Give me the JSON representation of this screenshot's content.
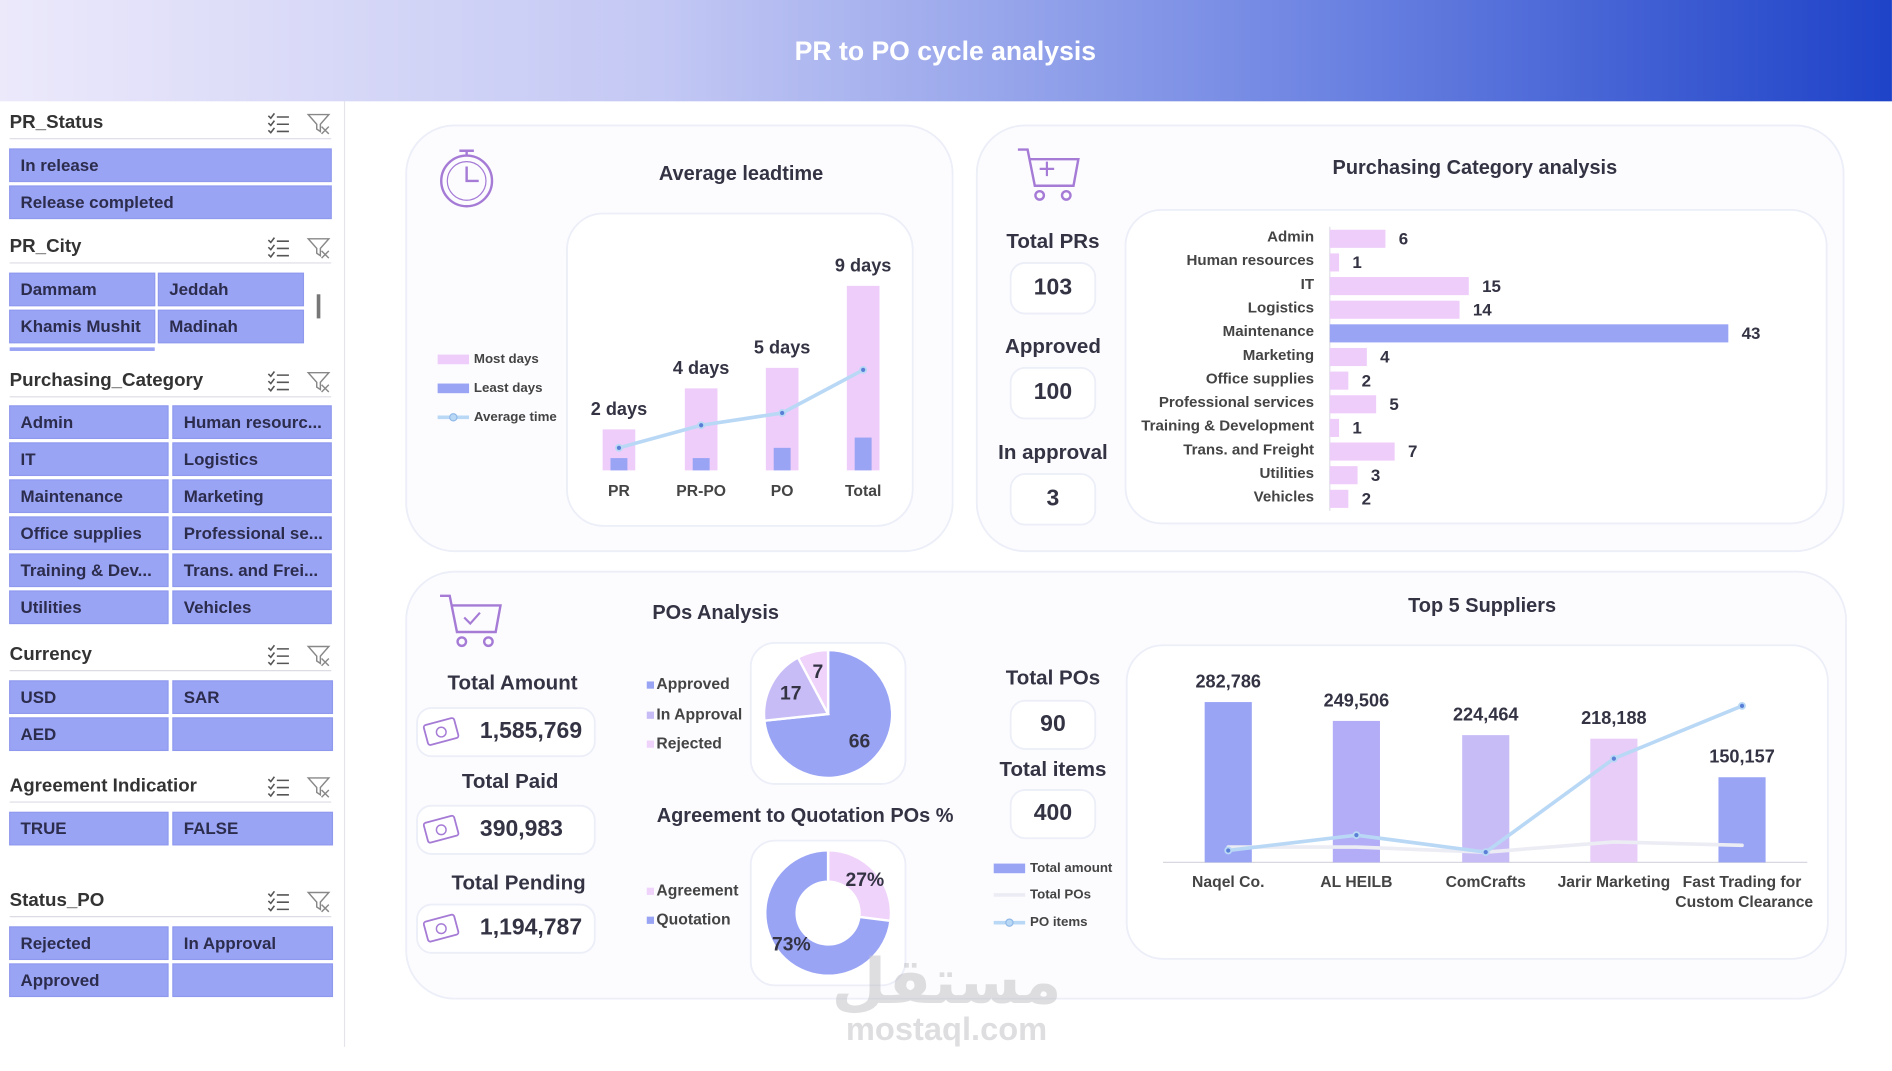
{
  "header": {
    "title": "PR to PO cycle analysis"
  },
  "slicers": [
    {
      "title": "PR_Status",
      "items": [
        "In release",
        "Release completed"
      ]
    },
    {
      "title": "PR_City",
      "items": [
        "Dammam",
        "Jeddah",
        "Khamis Mushit",
        "Madinah"
      ]
    },
    {
      "title": "Purchasing_Category",
      "items": [
        "Admin",
        "Human resourc...",
        "IT",
        "Logistics",
        "Maintenance",
        "Marketing",
        "Office supplies",
        "Professional se...",
        "Training & Dev...",
        "Trans. and Frei...",
        "Utilities",
        "Vehicles"
      ]
    },
    {
      "title": "Currency",
      "items": [
        "USD",
        "SAR",
        "AED"
      ]
    },
    {
      "title": "Agreement Indicatior",
      "items": [
        "TRUE",
        "FALSE"
      ]
    },
    {
      "title": "Status_PO",
      "items": [
        "Rejected",
        "In Approval",
        "Approved"
      ]
    }
  ],
  "kpis": {
    "category": [
      {
        "label": "Total PRs",
        "value": "103"
      },
      {
        "label": "Approved",
        "value": "100"
      },
      {
        "label": "In approval",
        "value": "3"
      }
    ],
    "pos": [
      {
        "label": "Total Amount",
        "value": "1,585,769"
      },
      {
        "label": "Total Paid",
        "value": "390,983"
      },
      {
        "label": "Total Pending",
        "value": "1,194,787"
      }
    ],
    "suppliers": [
      {
        "label": "Total POs",
        "value": "90"
      },
      {
        "label": "Total items",
        "value": "400"
      }
    ]
  },
  "chart_data": [
    {
      "type": "combo",
      "title": "Average leadtime",
      "categories": [
        "PR",
        "PR-PO",
        "PO",
        "Total"
      ],
      "series": [
        {
          "name": "Most days",
          "type": "bar",
          "color": "#efcdfa",
          "values": [
            2,
            4,
            5,
            9
          ],
          "value_labels": [
            "2 days",
            "4 days",
            "5 days",
            "9 days"
          ]
        },
        {
          "name": "Least days",
          "type": "bar",
          "color": "#9aa4f5",
          "values": [
            0.6,
            0.6,
            1.1,
            1.6
          ]
        },
        {
          "name": "Average time",
          "type": "line",
          "color": "#b9d8f5",
          "values": [
            1.1,
            2.2,
            2.8,
            4.9
          ],
          "markers": true
        }
      ],
      "ylim": [
        0,
        10
      ]
    },
    {
      "type": "hbar",
      "title": "Purchasing Category analysis",
      "categories": [
        "Admin",
        "Human resources",
        "IT",
        "Logistics",
        "Maintenance",
        "Marketing",
        "Office supplies",
        "Professional services",
        "Training & Development",
        "Trans. and Freight",
        "Utilities",
        "Vehicles"
      ],
      "values": [
        6,
        1,
        15,
        14,
        43,
        4,
        2,
        5,
        1,
        7,
        3,
        2
      ],
      "colors": [
        "#efcdfa",
        "#efcdfa",
        "#efcdfa",
        "#efcdfa",
        "#9aa4f5",
        "#efcdfa",
        "#efcdfa",
        "#efcdfa",
        "#efcdfa",
        "#efcdfa",
        "#efcdfa",
        "#efcdfa"
      ],
      "xlim": [
        0,
        45
      ]
    },
    {
      "type": "pie",
      "title": "POs Analysis",
      "categories": [
        "Approved",
        "In Approval",
        "Rejected"
      ],
      "values": [
        66,
        17,
        7
      ],
      "colors": [
        "#9aa4f5",
        "#c8bcf6",
        "#efd3fa"
      ]
    },
    {
      "type": "donut",
      "title": "Agreement to Quotation POs %",
      "categories": [
        "Agreement",
        "Quotation"
      ],
      "values": [
        27,
        73
      ],
      "value_labels": [
        "27%",
        "73%"
      ],
      "colors": [
        "#efd3fa",
        "#9aa4f5"
      ]
    },
    {
      "type": "combo",
      "title": "Top 5 Suppliers",
      "categories": [
        "Naqel Co.",
        "AL HEILB",
        "ComCrafts",
        "Jarir Marketing",
        "Fast Trading for Custom Clearance"
      ],
      "series": [
        {
          "name": "Total amount",
          "type": "bar",
          "color": "#9aa4f5",
          "colors": [
            "#9aa4f5",
            "#b3acf6",
            "#c8bcf6",
            "#e8cdf9",
            "#9aa4f5"
          ],
          "values": [
            282786,
            249506,
            224464,
            218188,
            150157
          ],
          "value_labels": [
            "282,786",
            "249,506",
            "224,464",
            "218,188",
            "150,157"
          ]
        },
        {
          "name": "Total POs",
          "type": "line",
          "axis": "y2",
          "color": "#ececf4",
          "values": [
            9,
            9,
            6,
            12,
            10
          ]
        },
        {
          "name": "PO items",
          "type": "line",
          "axis": "y2",
          "color": "#b9d8f5",
          "values": [
            7,
            16,
            6,
            61,
            92
          ],
          "markers": true
        }
      ],
      "ylim": [
        0,
        300000
      ],
      "y2lim": [
        0,
        100
      ]
    }
  ],
  "watermark": {
    "logo": "مستقل",
    "site": "mostaql.com"
  }
}
